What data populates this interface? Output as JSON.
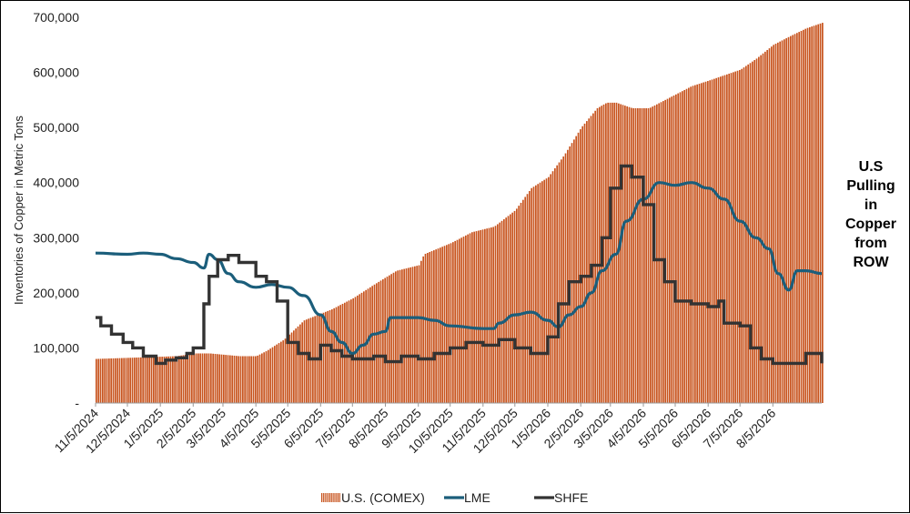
{
  "chart_data": {
    "type": "bar+line",
    "ylabel": "Inventories of Copper in Metric Tons",
    "ylim": [
      0,
      700000
    ],
    "y_ticks": [
      {
        "value": 0,
        "label": "-"
      },
      {
        "value": 100000,
        "label": "100,000"
      },
      {
        "value": 200000,
        "label": "200,000"
      },
      {
        "value": 300000,
        "label": "300,000"
      },
      {
        "value": 400000,
        "label": "400,000"
      },
      {
        "value": 500000,
        "label": "500,000"
      },
      {
        "value": 600000,
        "label": "600,000"
      },
      {
        "value": 700000,
        "label": "700,000"
      }
    ],
    "x_ticks": [
      "11/5/2024",
      "12/5/2024",
      "1/5/2025",
      "2/5/2025",
      "3/5/2025",
      "4/5/2025",
      "5/5/2025",
      "6/5/2025",
      "7/5/2025",
      "8/5/2025",
      "9/5/2025",
      "10/5/2025",
      "11/5/2025",
      "12/5/2025",
      "1/5/2026",
      "2/5/2026",
      "3/5/2026",
      "4/5/2026",
      "5/5/2026",
      "6/5/2026",
      "7/5/2026",
      "8/5/2026"
    ],
    "x_range": [
      "11/5/2024",
      "9/20/2026"
    ],
    "grid": false,
    "legend_position": "bottom",
    "series": [
      {
        "name": "U.S. (COMEX)",
        "type": "bar",
        "color": "#C8541E",
        "points": [
          [
            "11/5/2024",
            80000
          ],
          [
            "1/20/2025",
            85000
          ],
          [
            "2/5/2025",
            90000
          ],
          [
            "2/20/2025",
            90000
          ],
          [
            "3/20/2025",
            85000
          ],
          [
            "4/5/2025",
            85000
          ],
          [
            "4/15/2025",
            95000
          ],
          [
            "5/1/2025",
            115000
          ],
          [
            "5/20/2025",
            150000
          ],
          [
            "6/15/2025",
            170000
          ],
          [
            "7/5/2025",
            190000
          ],
          [
            "7/25/2025",
            215000
          ],
          [
            "8/15/2025",
            240000
          ],
          [
            "9/5/2025",
            250000
          ],
          [
            "9/10/2025",
            270000
          ],
          [
            "10/5/2025",
            290000
          ],
          [
            "10/25/2025",
            310000
          ],
          [
            "11/15/2025",
            320000
          ],
          [
            "12/5/2025",
            350000
          ],
          [
            "12/20/2025",
            390000
          ],
          [
            "1/5/2026",
            410000
          ],
          [
            "1/20/2026",
            450000
          ],
          [
            "2/5/2026",
            500000
          ],
          [
            "2/20/2026",
            535000
          ],
          [
            "3/1/2026",
            545000
          ],
          [
            "3/10/2026",
            545000
          ],
          [
            "3/25/2026",
            535000
          ],
          [
            "4/10/2026",
            535000
          ],
          [
            "4/20/2026",
            545000
          ],
          [
            "5/5/2026",
            560000
          ],
          [
            "5/20/2026",
            575000
          ],
          [
            "6/5/2026",
            585000
          ],
          [
            "6/20/2026",
            595000
          ],
          [
            "7/5/2026",
            605000
          ],
          [
            "7/20/2026",
            625000
          ],
          [
            "8/5/2026",
            650000
          ],
          [
            "8/20/2026",
            665000
          ],
          [
            "9/5/2026",
            680000
          ],
          [
            "9/20/2026",
            690000
          ]
        ]
      },
      {
        "name": "LME",
        "type": "line",
        "color": "#1B5E7B",
        "points": [
          [
            "11/5/2024",
            272000
          ],
          [
            "12/5/2024",
            270000
          ],
          [
            "12/20/2024",
            272000
          ],
          [
            "1/5/2025",
            270000
          ],
          [
            "1/20/2025",
            262000
          ],
          [
            "2/5/2025",
            255000
          ],
          [
            "2/15/2025",
            245000
          ],
          [
            "2/20/2025",
            270000
          ],
          [
            "2/28/2025",
            260000
          ],
          [
            "3/10/2025",
            235000
          ],
          [
            "3/20/2025",
            220000
          ],
          [
            "4/5/2025",
            210000
          ],
          [
            "4/20/2025",
            215000
          ],
          [
            "5/5/2025",
            210000
          ],
          [
            "5/20/2025",
            195000
          ],
          [
            "6/5/2025",
            160000
          ],
          [
            "6/15/2025",
            130000
          ],
          [
            "6/25/2025",
            110000
          ],
          [
            "7/5/2025",
            90000
          ],
          [
            "7/15/2025",
            105000
          ],
          [
            "7/25/2025",
            125000
          ],
          [
            "8/5/2025",
            130000
          ],
          [
            "8/10/2025",
            155000
          ],
          [
            "9/5/2025",
            155000
          ],
          [
            "9/20/2025",
            150000
          ],
          [
            "10/5/2025",
            140000
          ],
          [
            "11/5/2025",
            135000
          ],
          [
            "11/15/2025",
            135000
          ],
          [
            "11/20/2025",
            145000
          ],
          [
            "12/5/2025",
            160000
          ],
          [
            "12/20/2025",
            165000
          ],
          [
            "1/5/2026",
            150000
          ],
          [
            "1/15/2026",
            138000
          ],
          [
            "1/25/2026",
            160000
          ],
          [
            "2/5/2026",
            175000
          ],
          [
            "2/15/2026",
            200000
          ],
          [
            "2/25/2026",
            240000
          ],
          [
            "3/10/2026",
            270000
          ],
          [
            "3/20/2026",
            330000
          ],
          [
            "4/5/2026",
            370000
          ],
          [
            "4/20/2026",
            400000
          ],
          [
            "5/5/2026",
            395000
          ],
          [
            "5/20/2026",
            400000
          ],
          [
            "6/5/2026",
            390000
          ],
          [
            "6/20/2026",
            370000
          ],
          [
            "7/5/2026",
            330000
          ],
          [
            "7/20/2026",
            300000
          ],
          [
            "8/1/2026",
            280000
          ],
          [
            "8/10/2026",
            235000
          ],
          [
            "8/20/2026",
            205000
          ],
          [
            "8/28/2026",
            240000
          ],
          [
            "9/5/2026",
            240000
          ],
          [
            "9/20/2026",
            235000
          ]
        ]
      },
      {
        "name": "SHFE",
        "type": "step",
        "color": "#333333",
        "points": [
          [
            "11/5/2024",
            155000
          ],
          [
            "11/10/2024",
            140000
          ],
          [
            "11/20/2024",
            125000
          ],
          [
            "12/1/2024",
            110000
          ],
          [
            "12/10/2024",
            100000
          ],
          [
            "12/20/2024",
            85000
          ],
          [
            "1/1/2025",
            72000
          ],
          [
            "1/10/2025",
            78000
          ],
          [
            "1/20/2025",
            82000
          ],
          [
            "1/30/2025",
            90000
          ],
          [
            "2/5/2025",
            100000
          ],
          [
            "2/15/2025",
            180000
          ],
          [
            "2/20/2025",
            230000
          ],
          [
            "2/28/2025",
            260000
          ],
          [
            "3/10/2025",
            268000
          ],
          [
            "3/20/2025",
            255000
          ],
          [
            "4/5/2025",
            230000
          ],
          [
            "4/15/2025",
            220000
          ],
          [
            "4/25/2025",
            185000
          ],
          [
            "5/5/2025",
            110000
          ],
          [
            "5/15/2025",
            90000
          ],
          [
            "5/25/2025",
            80000
          ],
          [
            "6/5/2025",
            105000
          ],
          [
            "6/15/2025",
            95000
          ],
          [
            "6/25/2025",
            85000
          ],
          [
            "7/5/2025",
            80000
          ],
          [
            "7/25/2025",
            85000
          ],
          [
            "8/5/2025",
            75000
          ],
          [
            "8/20/2025",
            85000
          ],
          [
            "9/5/2025",
            80000
          ],
          [
            "9/20/2025",
            90000
          ],
          [
            "10/5/2025",
            100000
          ],
          [
            "10/20/2025",
            110000
          ],
          [
            "11/5/2025",
            105000
          ],
          [
            "11/20/2025",
            115000
          ],
          [
            "12/5/2025",
            100000
          ],
          [
            "12/20/2025",
            90000
          ],
          [
            "1/5/2026",
            120000
          ],
          [
            "1/15/2026",
            180000
          ],
          [
            "1/25/2026",
            220000
          ],
          [
            "2/5/2026",
            230000
          ],
          [
            "2/15/2026",
            250000
          ],
          [
            "2/25/2026",
            300000
          ],
          [
            "3/5/2026",
            390000
          ],
          [
            "3/15/2026",
            430000
          ],
          [
            "3/25/2026",
            410000
          ],
          [
            "4/5/2026",
            360000
          ],
          [
            "4/15/2026",
            260000
          ],
          [
            "4/25/2026",
            220000
          ],
          [
            "5/5/2026",
            185000
          ],
          [
            "5/20/2026",
            180000
          ],
          [
            "6/5/2026",
            175000
          ],
          [
            "6/15/2026",
            185000
          ],
          [
            "6/20/2026",
            145000
          ],
          [
            "7/5/2026",
            140000
          ],
          [
            "7/15/2026",
            100000
          ],
          [
            "7/25/2026",
            80000
          ],
          [
            "8/5/2026",
            72000
          ],
          [
            "8/25/2026",
            72000
          ],
          [
            "9/5/2026",
            90000
          ],
          [
            "9/20/2026",
            72000
          ]
        ]
      }
    ],
    "annotation": "U.S\nPulling\nin\nCopper\nfrom\nROW"
  },
  "annotation_lines": [
    "U.S",
    "Pulling",
    "in",
    "Copper",
    "from",
    "ROW"
  ]
}
